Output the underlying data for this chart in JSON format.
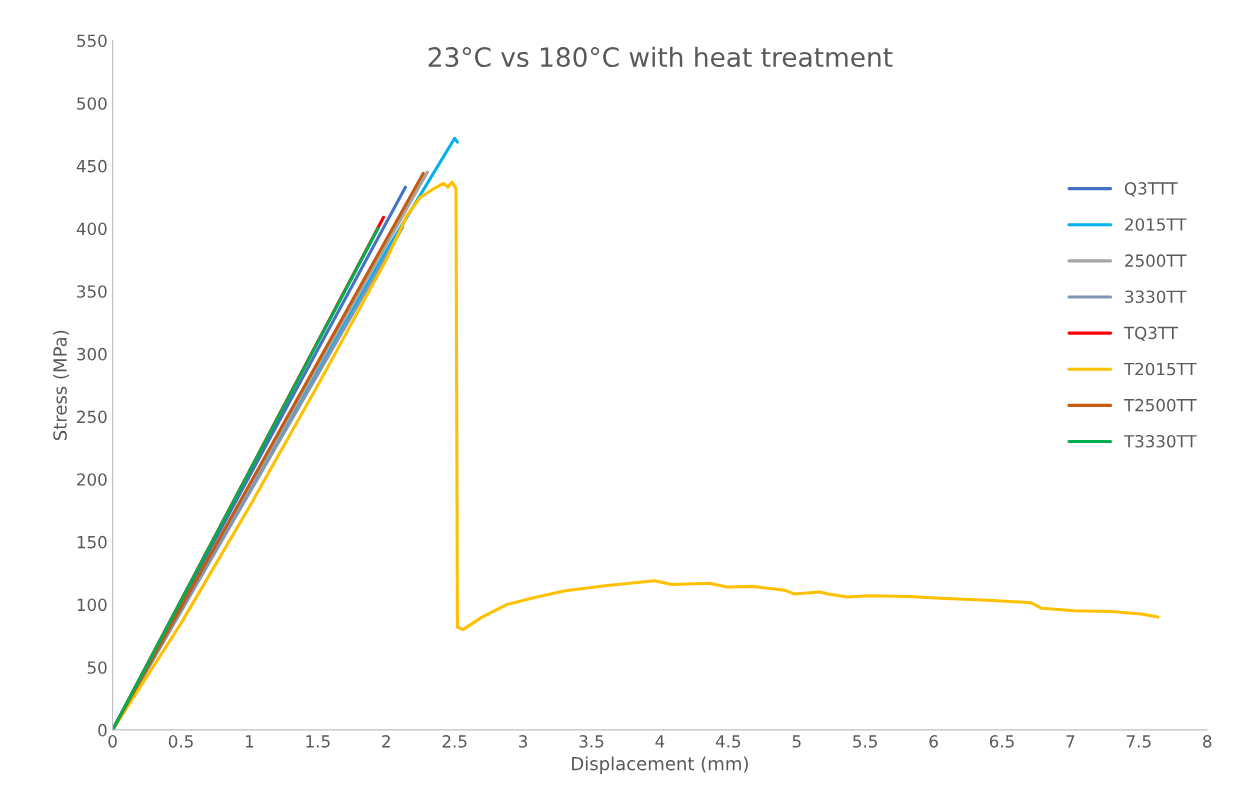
{
  "chart_data": {
    "type": "line",
    "title": "23°C vs 180°C with heat treatment",
    "xlabel": "Displacement (mm)",
    "ylabel": "Stress (MPa)",
    "xlim": [
      0,
      8
    ],
    "xticks": [
      0,
      0.5,
      1,
      1.5,
      2,
      2.5,
      3,
      3.5,
      4,
      4.5,
      5,
      5.5,
      6,
      6.5,
      7,
      7.5,
      8
    ],
    "ylim": [
      0,
      550
    ],
    "yticks": [
      0,
      50,
      100,
      150,
      200,
      250,
      300,
      350,
      400,
      450,
      500,
      550
    ],
    "grid": false,
    "legend": "right",
    "marker": "none",
    "line_style": "solid",
    "series": [
      {
        "name": "Q3TTT",
        "color": "#4472c4",
        "x": [
          0,
          2.14
        ],
        "values": [
          0,
          433
        ]
      },
      {
        "name": "2015TT",
        "color": "#00b0f0",
        "x": [
          0,
          2.0,
          2.5,
          2.52
        ],
        "values": [
          0,
          382,
          472,
          469
        ]
      },
      {
        "name": "2500TT",
        "color": "#a5a5a5",
        "x": [
          0,
          2.3
        ],
        "values": [
          0,
          445
        ]
      },
      {
        "name": "3330TT",
        "color": "#7f96b4",
        "x": [
          0,
          2.12
        ],
        "values": [
          0,
          401
        ]
      },
      {
        "name": "TQ3TT",
        "color": "#ff0000",
        "x": [
          0,
          1.98
        ],
        "values": [
          0,
          409
        ]
      },
      {
        "name": "T2015TT",
        "color": "#ffc000",
        "x": [
          0,
          0.5,
          1,
          1.5,
          2,
          2.15,
          2.25,
          2.35,
          2.42,
          2.45,
          2.48,
          2.51,
          2.52,
          2.56,
          2.7,
          2.88,
          3.1,
          3.31,
          3.6,
          3.96,
          4.09,
          4.36,
          4.49,
          4.68,
          4.91,
          4.98,
          5.17,
          5.23,
          5.37,
          5.53,
          5.82,
          6.05,
          6.4,
          6.71,
          6.79,
          7.03,
          7.3,
          7.52,
          7.64
        ],
        "values": [
          0,
          85,
          178,
          275,
          375,
          410,
          425,
          432,
          436,
          433,
          437,
          432,
          82,
          80,
          90,
          100,
          106,
          111,
          115,
          119,
          116,
          117,
          114,
          114.5,
          111.5,
          108.5,
          110,
          108.5,
          106,
          107,
          106.5,
          105,
          103.5,
          101.5,
          97,
          95,
          94.5,
          92.5,
          90
        ]
      },
      {
        "name": "T2500TT",
        "color": "#c55a11",
        "x": [
          0,
          2.27
        ],
        "values": [
          0,
          444
        ]
      },
      {
        "name": "T3330TT",
        "color": "#00b050",
        "x": [
          0,
          1.94
        ],
        "values": [
          0,
          400
        ]
      }
    ]
  }
}
